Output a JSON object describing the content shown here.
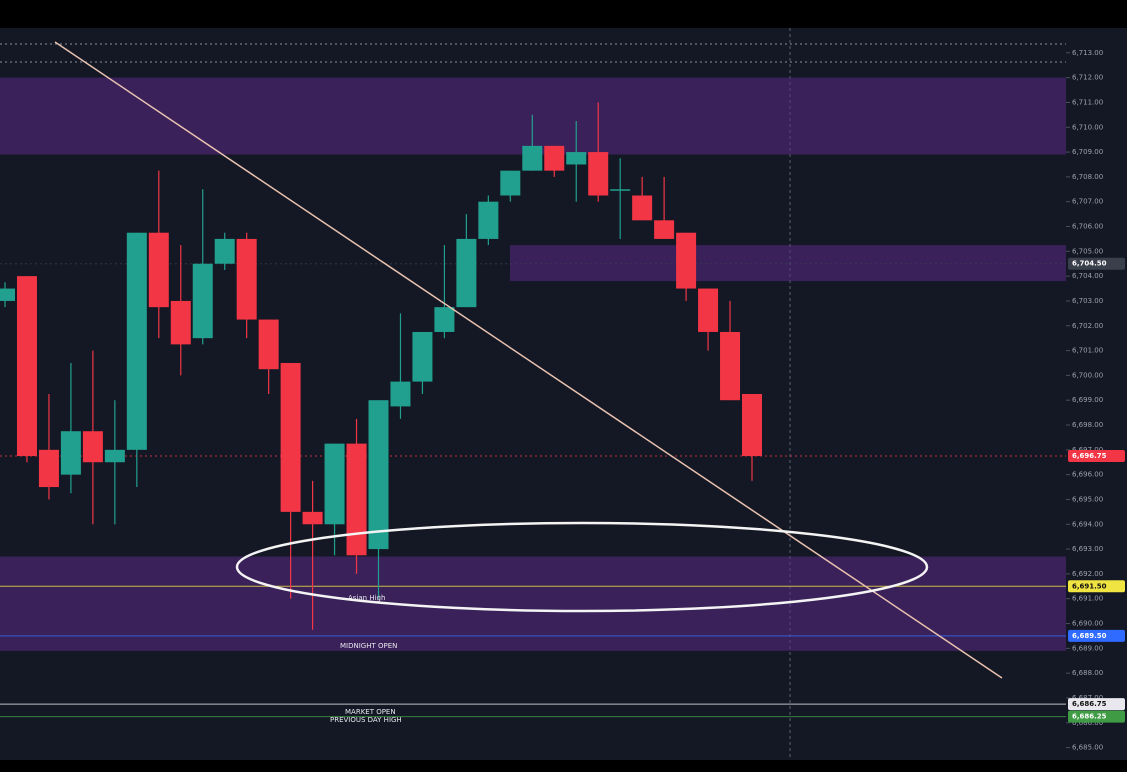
{
  "chart_data": {
    "type": "candlestick",
    "open": [
      6703.0,
      6704.0,
      6697.0,
      6696.0,
      6697.75,
      6696.5,
      6697.0,
      6705.75,
      6703.0,
      6701.5,
      6704.5,
      6705.5,
      6702.25,
      6700.5,
      6694.5,
      6694.0,
      6697.25,
      6693.0,
      6698.75,
      6699.75,
      6701.75,
      6702.75,
      6705.5,
      6707.25,
      6708.25,
      6709.25,
      6708.5,
      6709.0,
      6707.5,
      6707.25,
      6706.25,
      6705.75,
      6703.5,
      6701.75,
      6699.25
    ],
    "high": [
      6703.75,
      6704.0,
      6699.25,
      6700.5,
      6701.0,
      6699.0,
      6705.75,
      6708.25,
      6705.25,
      6707.5,
      6705.75,
      6705.75,
      6702.25,
      6700.5,
      6695.75,
      6697.25,
      6698.25,
      6699.0,
      6702.5,
      6701.75,
      6705.25,
      6706.5,
      6707.25,
      6708.25,
      6710.5,
      6709.25,
      6710.25,
      6711.0,
      6708.75,
      6708.0,
      6708.0,
      6705.75,
      6703.5,
      6703.0,
      6699.25
    ],
    "low": [
      6702.75,
      6696.5,
      6695.0,
      6695.25,
      6694.0,
      6694.0,
      6695.5,
      6701.5,
      6700.0,
      6701.25,
      6704.25,
      6701.5,
      6699.25,
      6691.0,
      6689.75,
      6692.75,
      6692.0,
      6691.0,
      6698.25,
      6699.25,
      6701.5,
      6702.75,
      6705.25,
      6707.0,
      6708.25,
      6708.0,
      6707.0,
      6707.0,
      6705.5,
      6706.25,
      6705.5,
      6703.0,
      6701.0,
      6699.0,
      6695.75
    ],
    "close": [
      6703.5,
      6696.75,
      6695.5,
      6697.75,
      6696.5,
      6697.0,
      6705.75,
      6702.75,
      6701.25,
      6704.5,
      6705.5,
      6702.25,
      6700.25,
      6694.5,
      6694.0,
      6697.25,
      6692.75,
      6699.0,
      6699.75,
      6701.75,
      6702.75,
      6705.5,
      6707.0,
      6708.25,
      6709.25,
      6708.25,
      6709.0,
      6707.25,
      6707.5,
      6706.25,
      6705.5,
      6703.5,
      6701.75,
      6699.0,
      6696.75
    ],
    "up_color": "#22a08f",
    "down_color": "#f23645",
    "ylim": [
      6684.5,
      6714
    ],
    "yticks": [
      {
        "value": 6685,
        "label": "6,685.00"
      },
      {
        "value": 6686,
        "label": "6,686.00"
      },
      {
        "value": 6687,
        "label": "6,687.00"
      },
      {
        "value": 6688,
        "label": "6,688.00"
      },
      {
        "value": 6689,
        "label": "6,689.00"
      },
      {
        "value": 6690,
        "label": "6,690.00"
      },
      {
        "value": 6691,
        "label": "6,691.00"
      },
      {
        "value": 6692,
        "label": "6,692.00"
      },
      {
        "value": 6693,
        "label": "6,693.00"
      },
      {
        "value": 6694,
        "label": "6,694.00"
      },
      {
        "value": 6695,
        "label": "6,695.00"
      },
      {
        "value": 6696,
        "label": "6,696.00"
      },
      {
        "value": 6697,
        "label": "6,697.00"
      },
      {
        "value": 6698,
        "label": "6,698.00"
      },
      {
        "value": 6699,
        "label": "6,699.00"
      },
      {
        "value": 6700,
        "label": "6,700.00"
      },
      {
        "value": 6701,
        "label": "6,701.00"
      },
      {
        "value": 6702,
        "label": "6,702.00"
      },
      {
        "value": 6703,
        "label": "6,703.00"
      },
      {
        "value": 6704,
        "label": "6,704.00"
      },
      {
        "value": 6705,
        "label": "6,705.00"
      },
      {
        "value": 6706,
        "label": "6,706.00"
      },
      {
        "value": 6707,
        "label": "6,707.00"
      },
      {
        "value": 6708,
        "label": "6,708.00"
      },
      {
        "value": 6709,
        "label": "6,709.00"
      },
      {
        "value": 6710,
        "label": "6,710.00"
      },
      {
        "value": 6711,
        "label": "6,711.00"
      },
      {
        "value": 6712,
        "label": "6,712.00"
      },
      {
        "value": 6713,
        "label": "6,713.00"
      }
    ],
    "zones": [
      {
        "from": 6708.9,
        "to": 6712.0
      },
      {
        "from": 6703.8,
        "to": 6705.25
      },
      {
        "from": 6688.9,
        "to": 6692.7
      }
    ],
    "price_lines": [
      {
        "value": 6704.5,
        "label": "6,704.50",
        "color": "#3a3f4c"
      },
      {
        "value": 6696.75,
        "label": "6,696.75",
        "color": "#f23645"
      },
      {
        "value": 6691.5,
        "label": "6,691.50",
        "color": "#f0e442"
      },
      {
        "value": 6689.5,
        "label": "6,689.50",
        "color": "#2f6bff"
      },
      {
        "value": 6686.75,
        "label": "6,686.75",
        "color": "#e8e8ee"
      },
      {
        "value": 6686.25,
        "label": "6,686.25",
        "color": "#3f9c45"
      }
    ],
    "annotations": [
      "Asian High",
      "MIDNIGHT OPEN",
      "MARKET OPEN",
      "PREVIOUS DAY HIGH"
    ]
  }
}
